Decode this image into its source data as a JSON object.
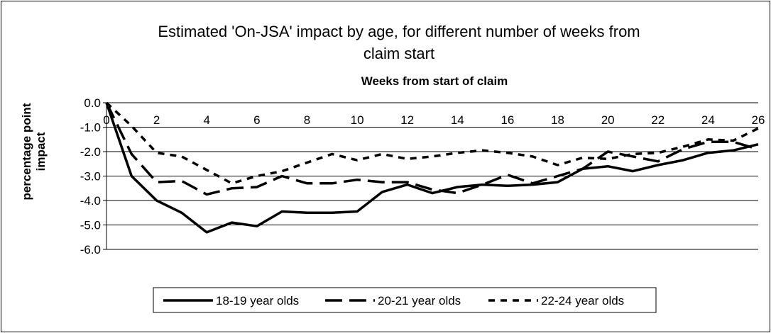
{
  "chart_data": {
    "type": "line",
    "title_lines": [
      "Estimated 'On-JSA' impact by age, for different number of weeks from",
      "claim start"
    ],
    "xlabel": "Weeks from start of claim",
    "ylabel_lines": [
      "percentage point",
      "impact"
    ],
    "xlim": [
      0,
      26
    ],
    "ylim": [
      -6,
      0
    ],
    "x_ticks": [
      0,
      2,
      4,
      6,
      8,
      10,
      12,
      14,
      16,
      18,
      20,
      22,
      24,
      26
    ],
    "y_ticks": [
      0,
      -1,
      -2,
      -3,
      -4,
      -5,
      -6
    ],
    "x_tick_labels": [
      "0",
      "2",
      "4",
      "6",
      "8",
      "10",
      "12",
      "14",
      "16",
      "18",
      "20",
      "22",
      "24",
      "26"
    ],
    "y_tick_labels": [
      "0.0",
      "-1.0",
      "-2.0",
      "-3.0",
      "-4.0",
      "-5.0",
      "-6.0"
    ],
    "grid": "horizontal",
    "legend_position": "bottom",
    "x": [
      0,
      1,
      2,
      3,
      4,
      5,
      6,
      7,
      8,
      9,
      10,
      11,
      12,
      13,
      14,
      15,
      16,
      17,
      18,
      19,
      20,
      21,
      22,
      23,
      24,
      25,
      26
    ],
    "series": [
      {
        "name": "18-19 year olds",
        "style": "solid",
        "values": [
          0,
          -3.0,
          -4.0,
          -4.5,
          -5.3,
          -4.9,
          -5.05,
          -4.45,
          -4.5,
          -4.5,
          -4.45,
          -3.65,
          -3.35,
          -3.7,
          -3.45,
          -3.35,
          -3.4,
          -3.35,
          -3.25,
          -2.7,
          -2.6,
          -2.8,
          -2.55,
          -2.35,
          -2.05,
          -1.95,
          -1.7
        ]
      },
      {
        "name": "20-21 year olds",
        "style": "long-dash",
        "values": [
          0,
          -2.1,
          -3.25,
          -3.2,
          -3.75,
          -3.5,
          -3.45,
          -3.0,
          -3.3,
          -3.3,
          -3.15,
          -3.25,
          -3.25,
          -3.55,
          -3.7,
          -3.35,
          -2.95,
          -3.3,
          -3.0,
          -2.7,
          -2.0,
          -2.2,
          -2.4,
          -1.9,
          -1.6,
          -1.6,
          -1.9
        ]
      },
      {
        "name": "22-24 year olds",
        "style": "short-dash",
        "values": [
          0,
          -0.95,
          -2.05,
          -2.2,
          -2.75,
          -3.3,
          -3.0,
          -2.8,
          -2.45,
          -2.1,
          -2.35,
          -2.1,
          -2.3,
          -2.2,
          -2.05,
          -1.95,
          -2.05,
          -2.2,
          -2.55,
          -2.25,
          -2.3,
          -2.1,
          -2.05,
          -1.8,
          -1.5,
          -1.55,
          -1.05
        ]
      }
    ]
  }
}
